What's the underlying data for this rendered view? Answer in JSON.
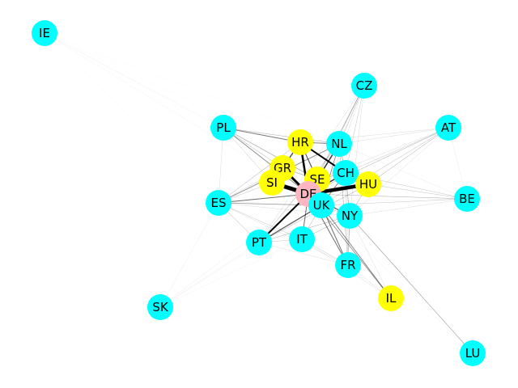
{
  "colors": {
    "base_node": "#00ffff",
    "highlight_node": "#ffff00",
    "center_node": "#ffb6c1",
    "edge": "#000000"
  },
  "graph": {
    "nodes": [
      {
        "id": "IE",
        "label": "IE",
        "group": "base"
      },
      {
        "id": "CZ",
        "label": "CZ",
        "group": "base"
      },
      {
        "id": "PL",
        "label": "PL",
        "group": "base"
      },
      {
        "id": "AT",
        "label": "AT",
        "group": "base"
      },
      {
        "id": "HR",
        "label": "HR",
        "group": "highlight"
      },
      {
        "id": "NL",
        "label": "NL",
        "group": "base"
      },
      {
        "id": "GR",
        "label": "GR",
        "group": "highlight"
      },
      {
        "id": "SE",
        "label": "SE",
        "group": "highlight"
      },
      {
        "id": "CH",
        "label": "CH",
        "group": "base"
      },
      {
        "id": "SI",
        "label": "SI",
        "group": "highlight"
      },
      {
        "id": "HU",
        "label": "HU",
        "group": "highlight"
      },
      {
        "id": "DE",
        "label": "DE",
        "group": "center"
      },
      {
        "id": "ES",
        "label": "ES",
        "group": "base"
      },
      {
        "id": "BE",
        "label": "BE",
        "group": "base"
      },
      {
        "id": "UK",
        "label": "UK",
        "group": "base"
      },
      {
        "id": "NY",
        "label": "NY",
        "group": "base"
      },
      {
        "id": "PT",
        "label": "PT",
        "group": "base"
      },
      {
        "id": "IT",
        "label": "IT",
        "group": "base"
      },
      {
        "id": "FR",
        "label": "FR",
        "group": "base"
      },
      {
        "id": "IL",
        "label": "IL",
        "group": "highlight"
      },
      {
        "id": "SK",
        "label": "SK",
        "group": "base"
      },
      {
        "id": "LU",
        "label": "LU",
        "group": "base"
      }
    ],
    "edges": [
      {
        "source": "DE",
        "target": "SI",
        "weight": 5
      },
      {
        "source": "DE",
        "target": "HU",
        "weight": 4.5
      },
      {
        "source": "DE",
        "target": "GR",
        "weight": 3
      },
      {
        "source": "DE",
        "target": "SE",
        "weight": 3
      },
      {
        "source": "DE",
        "target": "HR",
        "weight": 2.5
      },
      {
        "source": "DE",
        "target": "PT",
        "weight": 2
      },
      {
        "source": "DE",
        "target": "UK",
        "weight": 2
      },
      {
        "source": "DE",
        "target": "CH",
        "weight": 1.5
      },
      {
        "source": "DE",
        "target": "NL",
        "weight": 1.5
      },
      {
        "source": "DE",
        "target": "NY",
        "weight": 1.2
      },
      {
        "source": "DE",
        "target": "IT",
        "weight": 1
      },
      {
        "source": "DE",
        "target": "FR",
        "weight": 1
      },
      {
        "source": "DE",
        "target": "ES",
        "weight": 1
      },
      {
        "source": "DE",
        "target": "PL",
        "weight": 0.8
      },
      {
        "source": "DE",
        "target": "IL",
        "weight": 0.8
      },
      {
        "source": "DE",
        "target": "CZ",
        "weight": 0.6
      },
      {
        "source": "DE",
        "target": "AT",
        "weight": 0.5
      },
      {
        "source": "DE",
        "target": "BE",
        "weight": 0.5
      },
      {
        "source": "DE",
        "target": "SK",
        "weight": 0.2
      },
      {
        "source": "DE",
        "target": "IE",
        "weight": 0.15
      },
      {
        "source": "HR",
        "target": "CH",
        "weight": 2
      },
      {
        "source": "HR",
        "target": "GR",
        "weight": 1.2
      },
      {
        "source": "HR",
        "target": "SE",
        "weight": 1.2
      },
      {
        "source": "HR",
        "target": "PL",
        "weight": 0.9
      },
      {
        "source": "HR",
        "target": "NL",
        "weight": 0.9
      },
      {
        "source": "HR",
        "target": "SI",
        "weight": 0.9
      },
      {
        "source": "HR",
        "target": "AT",
        "weight": 0.3
      },
      {
        "source": "HR",
        "target": "ES",
        "weight": 0.5
      },
      {
        "source": "NL",
        "target": "ES",
        "weight": 0.8
      },
      {
        "source": "NL",
        "target": "UK",
        "weight": 0.8
      },
      {
        "source": "NL",
        "target": "CZ",
        "weight": 0.5
      },
      {
        "source": "NL",
        "target": "AT",
        "weight": 0.3
      },
      {
        "source": "NL",
        "target": "PL",
        "weight": 0.5
      },
      {
        "source": "NL",
        "target": "PT",
        "weight": 0.5
      },
      {
        "source": "NL",
        "target": "CH",
        "weight": 0.6
      },
      {
        "source": "CH",
        "target": "HU",
        "weight": 0.9
      },
      {
        "source": "CH",
        "target": "UK",
        "weight": 0.9
      },
      {
        "source": "CH",
        "target": "NY",
        "weight": 0.6
      },
      {
        "source": "CH",
        "target": "AT",
        "weight": 0.4
      },
      {
        "source": "CH",
        "target": "BE",
        "weight": 0.4
      },
      {
        "source": "HU",
        "target": "AT",
        "weight": 0.5
      },
      {
        "source": "HU",
        "target": "BE",
        "weight": 0.4
      },
      {
        "source": "HU",
        "target": "NY",
        "weight": 0.5
      },
      {
        "source": "UK",
        "target": "PT",
        "weight": 1.2
      },
      {
        "source": "UK",
        "target": "FR",
        "weight": 1
      },
      {
        "source": "UK",
        "target": "IL",
        "weight": 0.9
      },
      {
        "source": "UK",
        "target": "ES",
        "weight": 0.7
      },
      {
        "source": "UK",
        "target": "IT",
        "weight": 0.5
      },
      {
        "source": "UK",
        "target": "NY",
        "weight": 0.5
      },
      {
        "source": "UK",
        "target": "BE",
        "weight": 0.4
      },
      {
        "source": "NY",
        "target": "LU",
        "weight": 0.6
      },
      {
        "source": "NY",
        "target": "FR",
        "weight": 0.6
      },
      {
        "source": "NY",
        "target": "IT",
        "weight": 0.5
      },
      {
        "source": "NY",
        "target": "PT",
        "weight": 0.5
      },
      {
        "source": "NY",
        "target": "ES",
        "weight": 0.3
      },
      {
        "source": "NY",
        "target": "BE",
        "weight": 0.3
      },
      {
        "source": "PL",
        "target": "SE",
        "weight": 0.6
      },
      {
        "source": "PL",
        "target": "GR",
        "weight": 0.5
      },
      {
        "source": "PL",
        "target": "IE",
        "weight": 0.15
      },
      {
        "source": "PL",
        "target": "ES",
        "weight": 0.3
      },
      {
        "source": "PL",
        "target": "SI",
        "weight": 0.4
      },
      {
        "source": "GR",
        "target": "SE",
        "weight": 0.6
      },
      {
        "source": "GR",
        "target": "SI",
        "weight": 0.6
      },
      {
        "source": "GR",
        "target": "ES",
        "weight": 0.4
      },
      {
        "source": "SE",
        "target": "CH",
        "weight": 0.6
      },
      {
        "source": "SE",
        "target": "UK",
        "weight": 0.6
      },
      {
        "source": "SI",
        "target": "ES",
        "weight": 0.4
      },
      {
        "source": "ES",
        "target": "PT",
        "weight": 0.5
      },
      {
        "source": "ES",
        "target": "IT",
        "weight": 0.4
      },
      {
        "source": "ES",
        "target": "SK",
        "weight": 0.2
      },
      {
        "source": "ES",
        "target": "IE",
        "weight": 0.1
      },
      {
        "source": "ES",
        "target": "FR",
        "weight": 0.3
      },
      {
        "source": "PT",
        "target": "IT",
        "weight": 0.4
      },
      {
        "source": "PT",
        "target": "FR",
        "weight": 0.3
      },
      {
        "source": "PT",
        "target": "SK",
        "weight": 0.2
      },
      {
        "source": "PT",
        "target": "HU",
        "weight": 0.5
      },
      {
        "source": "IT",
        "target": "FR",
        "weight": 0.4
      },
      {
        "source": "IT",
        "target": "IL",
        "weight": 0.3
      },
      {
        "source": "FR",
        "target": "IL",
        "weight": 0.3
      },
      {
        "source": "FR",
        "target": "NL",
        "weight": 0.5
      },
      {
        "source": "FR",
        "target": "CH",
        "weight": 0.4
      },
      {
        "source": "CZ",
        "target": "SE",
        "weight": 0.4
      },
      {
        "source": "CZ",
        "target": "CH",
        "weight": 0.4
      },
      {
        "source": "CZ",
        "target": "UK",
        "weight": 0.3
      },
      {
        "source": "CZ",
        "target": "NY",
        "weight": 0.3
      },
      {
        "source": "CZ",
        "target": "PT",
        "weight": 0.3
      },
      {
        "source": "AT",
        "target": "BE",
        "weight": 0.2
      },
      {
        "source": "AT",
        "target": "UK",
        "weight": 0.3
      },
      {
        "source": "AT",
        "target": "NY",
        "weight": 0.3
      },
      {
        "source": "AT",
        "target": "SE",
        "weight": 0.3
      },
      {
        "source": "AT",
        "target": "PT",
        "weight": 0.3
      },
      {
        "source": "BE",
        "target": "NL",
        "weight": 0.2
      },
      {
        "source": "BE",
        "target": "ES",
        "weight": 0.15
      },
      {
        "source": "SK",
        "target": "UK",
        "weight": 0.15
      },
      {
        "source": "SK",
        "target": "IT",
        "weight": 0.15
      },
      {
        "source": "SK",
        "target": "SI",
        "weight": 0.1
      },
      {
        "source": "IE",
        "target": "SE",
        "weight": 0.1
      },
      {
        "source": "IE",
        "target": "NL",
        "weight": 0.1
      },
      {
        "source": "IE",
        "target": "CH",
        "weight": 0.1
      },
      {
        "source": "LU",
        "target": "UK",
        "weight": 0.15
      },
      {
        "source": "LU",
        "target": "FR",
        "weight": 0.1
      },
      {
        "source": "IL",
        "target": "NY",
        "weight": 0.3
      }
    ]
  }
}
